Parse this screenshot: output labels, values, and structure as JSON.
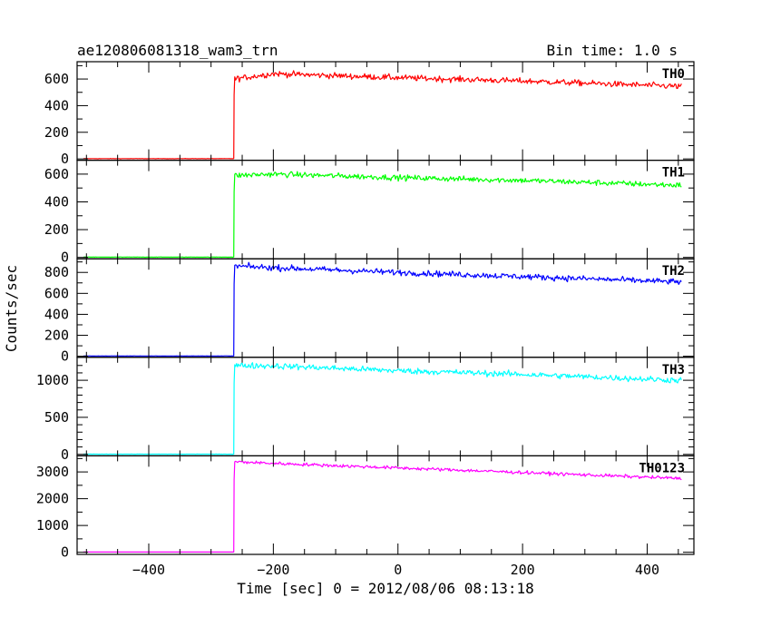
{
  "chart_data": {
    "type": "line",
    "title": "ae120806081318_wam3_trn",
    "bin_time_label": "Bin time: 1.0 s",
    "xlabel": "Time [sec] 0 = 2012/08/06 08:13:18",
    "ylabel": "Counts/sec",
    "xlim": [
      -515,
      475
    ],
    "xticks": [
      -400,
      -200,
      0,
      200,
      400
    ],
    "xtick_labels": [
      "−400",
      "−200",
      "0",
      "200",
      "400"
    ],
    "trigger_time": -263,
    "data_start": -505,
    "data_end": 455,
    "panels": [
      {
        "name": "TH0",
        "color": "#ff0000",
        "ylim": [
          -10,
          730
        ],
        "yticks": [
          0,
          200,
          400,
          600
        ],
        "yticks_minor": [
          100,
          300,
          500,
          700
        ],
        "baseline": 2,
        "peak": 655,
        "end": 555,
        "noise": 22,
        "points": [
          {
            "t": -263,
            "v": 600
          },
          {
            "t": -200,
            "v": 640
          },
          {
            "t": 0,
            "v": 610
          },
          {
            "t": 200,
            "v": 585
          },
          {
            "t": 450,
            "v": 545
          }
        ]
      },
      {
        "name": "TH1",
        "color": "#00ff00",
        "ylim": [
          -10,
          700
        ],
        "yticks": [
          0,
          200,
          400,
          600
        ],
        "yticks_minor": [
          100,
          300,
          500
        ],
        "baseline": 2,
        "peak": 615,
        "end": 525,
        "noise": 20,
        "points": [
          {
            "t": -263,
            "v": 590
          },
          {
            "t": -200,
            "v": 600
          },
          {
            "t": 0,
            "v": 575
          },
          {
            "t": 200,
            "v": 555
          },
          {
            "t": 450,
            "v": 520
          }
        ]
      },
      {
        "name": "TH2",
        "color": "#0000ff",
        "ylim": [
          -10,
          930
        ],
        "yticks": [
          0,
          200,
          400,
          600,
          800
        ],
        "yticks_minor": [
          100,
          300,
          500,
          700,
          900
        ],
        "baseline": 3,
        "peak": 880,
        "end": 710,
        "noise": 28,
        "points": [
          {
            "t": -263,
            "v": 860
          },
          {
            "t": -200,
            "v": 845
          },
          {
            "t": 0,
            "v": 800
          },
          {
            "t": 200,
            "v": 760
          },
          {
            "t": 450,
            "v": 710
          }
        ]
      },
      {
        "name": "TH3",
        "color": "#00ffff",
        "ylim": [
          -20,
          1310
        ],
        "yticks": [
          0,
          500,
          1000
        ],
        "yticks_minor": [
          100,
          200,
          300,
          400,
          600,
          700,
          800,
          900,
          1100,
          1200,
          1300
        ],
        "tick_labels": [
          "0",
          "500",
          "1000"
        ],
        "baseline": 3,
        "peak": 1230,
        "end": 1000,
        "noise": 40,
        "points": [
          {
            "t": -263,
            "v": 1200
          },
          {
            "t": -200,
            "v": 1195
          },
          {
            "t": 0,
            "v": 1130
          },
          {
            "t": 200,
            "v": 1080
          },
          {
            "t": 450,
            "v": 1000
          }
        ]
      },
      {
        "name": "TH0123",
        "color": "#ff00ff",
        "ylim": [
          -80,
          3600
        ],
        "yticks": [
          0,
          1000,
          2000,
          3000
        ],
        "yticks_minor": [
          500,
          1500,
          2500,
          3500
        ],
        "baseline": 8,
        "peak": 3420,
        "end": 2760,
        "noise": 60,
        "points": [
          {
            "t": -263,
            "v": 3380
          },
          {
            "t": -200,
            "v": 3320
          },
          {
            "t": 0,
            "v": 3150
          },
          {
            "t": 200,
            "v": 2980
          },
          {
            "t": 450,
            "v": 2760
          }
        ]
      }
    ]
  }
}
